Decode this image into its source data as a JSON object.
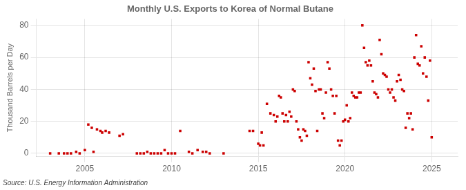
{
  "chart_data": {
    "type": "scatter",
    "title": "Monthly U.S. Exports to Korea of Normal Butane",
    "y_label": "Thousand Barrels per Day",
    "annotation": "Source: U.S. Energy Information Administration",
    "color": "#cc0000",
    "marker": "square",
    "grid": true,
    "xlim": [
      2002.2,
      2026.5
    ],
    "ylim": [
      -2,
      84
    ],
    "xticks": [
      2005,
      2010,
      2015,
      2020,
      2025
    ],
    "yticks": [
      0,
      20,
      40,
      60,
      80
    ],
    "x": [
      2003.0,
      2003.5,
      2003.8,
      2004.0,
      2004.2,
      2004.5,
      2004.7,
      2005.0,
      2005.2,
      2005.4,
      2005.5,
      2005.7,
      2005.9,
      2006.0,
      2006.2,
      2006.4,
      2007.0,
      2007.2,
      2008.0,
      2008.2,
      2008.4,
      2008.6,
      2008.8,
      2009.0,
      2009.2,
      2009.4,
      2009.6,
      2009.8,
      2010.0,
      2010.2,
      2010.5,
      2011.0,
      2011.2,
      2011.5,
      2011.8,
      2012.0,
      2012.2,
      2013.0,
      2014.5,
      2014.7,
      2015.0,
      2015.1,
      2015.2,
      2015.3,
      2015.5,
      2015.7,
      2015.9,
      2016.0,
      2016.1,
      2016.2,
      2016.3,
      2016.4,
      2016.5,
      2016.6,
      2016.7,
      2016.8,
      2016.9,
      2017.0,
      2017.1,
      2017.2,
      2017.3,
      2017.4,
      2017.5,
      2017.6,
      2017.7,
      2017.8,
      2017.9,
      2018.0,
      2018.1,
      2018.2,
      2018.3,
      2018.4,
      2018.5,
      2018.6,
      2018.7,
      2018.8,
      2018.9,
      2019.0,
      2019.1,
      2019.2,
      2019.3,
      2019.4,
      2019.5,
      2019.6,
      2019.7,
      2019.8,
      2019.9,
      2020.0,
      2020.1,
      2020.2,
      2020.3,
      2020.4,
      2020.5,
      2020.6,
      2020.7,
      2020.8,
      2020.9,
      2021.0,
      2021.1,
      2021.2,
      2021.3,
      2021.4,
      2021.5,
      2021.6,
      2021.7,
      2021.8,
      2021.9,
      2022.0,
      2022.1,
      2022.2,
      2022.3,
      2022.4,
      2022.5,
      2022.6,
      2022.7,
      2022.8,
      2022.9,
      2023.0,
      2023.1,
      2023.2,
      2023.3,
      2023.4,
      2023.5,
      2023.6,
      2023.7,
      2023.8,
      2023.9,
      2024.0,
      2024.1,
      2024.2,
      2024.3,
      2024.4,
      2024.5,
      2024.6,
      2024.7,
      2024.8,
      2024.9,
      2025.0
    ],
    "values": [
      0,
      0,
      0,
      0,
      0,
      1,
      0,
      2,
      18,
      16,
      1,
      15,
      14,
      13,
      14,
      13,
      11,
      12,
      0,
      0,
      0,
      1,
      0,
      0,
      0,
      0,
      2,
      0,
      0,
      0,
      14,
      1,
      0,
      2,
      1,
      1,
      0,
      0,
      14,
      14,
      6,
      5,
      13,
      5,
      31,
      25,
      24,
      20,
      23,
      36,
      35,
      25,
      20,
      24,
      20,
      26,
      23,
      40,
      39,
      20,
      15,
      10,
      8,
      15,
      14,
      11,
      57,
      47,
      43,
      53,
      39,
      14,
      40,
      40,
      25,
      22,
      38,
      57,
      53,
      40,
      36,
      25,
      36,
      8,
      5,
      8,
      20,
      21,
      30,
      20,
      22,
      38,
      36,
      35,
      35,
      38,
      38,
      80,
      66,
      57,
      55,
      58,
      55,
      45,
      38,
      37,
      35,
      71,
      62,
      50,
      49,
      48,
      40,
      38,
      40,
      35,
      33,
      45,
      49,
      46,
      40,
      39,
      16,
      25,
      22,
      25,
      15,
      60,
      74,
      56,
      55,
      67,
      50,
      60,
      48,
      33,
      58,
      10
    ]
  }
}
